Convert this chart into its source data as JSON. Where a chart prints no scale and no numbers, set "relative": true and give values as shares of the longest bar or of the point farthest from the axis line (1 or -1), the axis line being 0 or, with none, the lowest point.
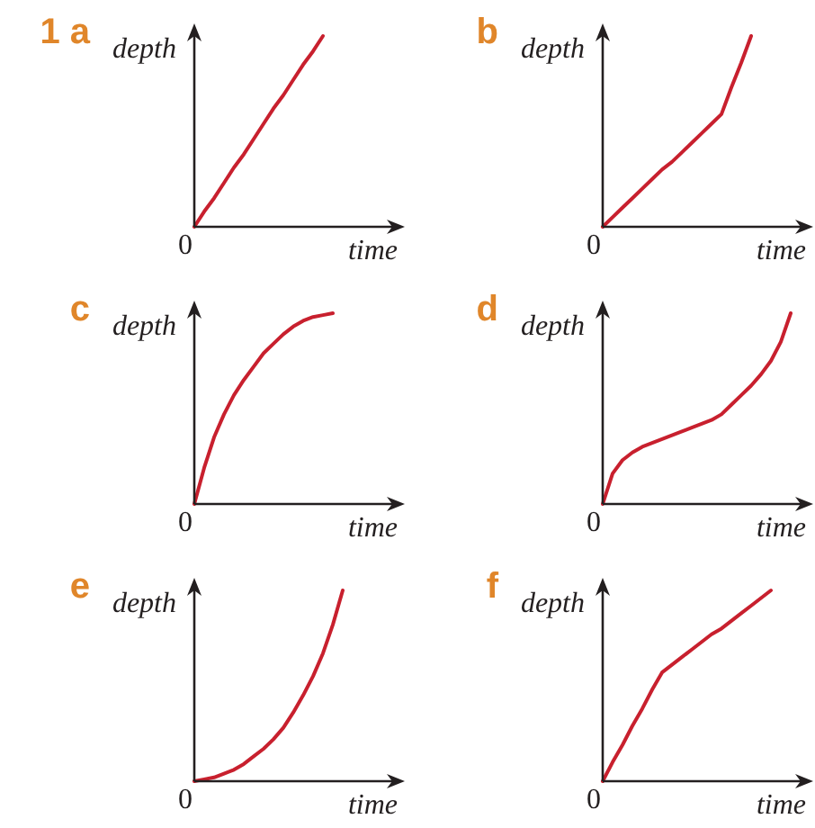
{
  "chart_data": [
    {
      "type": "line",
      "title": "1 a",
      "xlabel": "time",
      "ylabel": "depth",
      "annotations": [
        "0"
      ],
      "relative": true,
      "categories": [
        null,
        null,
        null,
        null,
        null,
        null,
        null,
        null,
        null,
        null,
        null,
        null,
        null,
        null,
        null,
        null,
        null,
        null,
        null,
        null,
        null
      ],
      "color": "#c8202e",
      "values": [
        0,
        0.08,
        0.15,
        0.23,
        0.31,
        0.38,
        0.46,
        0.54,
        0.62,
        0.69,
        0.77,
        0.85,
        0.92,
        1,
        null,
        null,
        null,
        null,
        null,
        null,
        null
      ]
    },
    {
      "type": "line",
      "title": "b",
      "xlabel": "time",
      "ylabel": "depth",
      "annotations": [
        "0"
      ],
      "relative": true,
      "categories": [
        null,
        null,
        null,
        null,
        null,
        null,
        null,
        null,
        null,
        null,
        null,
        null,
        null,
        null,
        null,
        null,
        null,
        null,
        null,
        null,
        null
      ],
      "color": "#c8202e",
      "values": [
        0,
        0.05,
        0.1,
        0.15,
        0.2,
        0.25,
        0.3,
        0.34,
        0.39,
        0.44,
        0.49,
        0.54,
        0.59,
        0.73,
        0.86,
        1,
        null,
        null,
        null,
        null,
        null
      ]
    },
    {
      "type": "line",
      "title": "c",
      "xlabel": "time",
      "ylabel": "depth",
      "annotations": [
        "0"
      ],
      "relative": true,
      "categories": [
        null,
        null,
        null,
        null,
        null,
        null,
        null,
        null,
        null,
        null,
        null,
        null,
        null,
        null,
        null,
        null,
        null,
        null,
        null,
        null,
        null
      ],
      "color": "#c8202e",
      "values": [
        0,
        0.19,
        0.35,
        0.47,
        0.57,
        0.65,
        0.72,
        0.79,
        0.84,
        0.89,
        0.93,
        0.96,
        0.98,
        0.99,
        1,
        null,
        null,
        null,
        null,
        null,
        null
      ]
    },
    {
      "type": "line",
      "title": "d",
      "xlabel": "time",
      "ylabel": "depth",
      "annotations": [
        "0"
      ],
      "relative": true,
      "categories": [
        null,
        null,
        null,
        null,
        null,
        null,
        null,
        null,
        null,
        null,
        null,
        null,
        null,
        null,
        null,
        null,
        null,
        null,
        null,
        null,
        null
      ],
      "color": "#c8202e",
      "values": [
        0,
        0.16,
        0.23,
        0.27,
        0.3,
        0.32,
        0.34,
        0.36,
        0.38,
        0.4,
        0.42,
        0.44,
        0.47,
        0.52,
        0.57,
        0.62,
        0.68,
        0.75,
        0.85,
        1,
        null
      ]
    },
    {
      "type": "line",
      "title": "e",
      "xlabel": "time",
      "ylabel": "depth",
      "annotations": [
        "0"
      ],
      "relative": true,
      "categories": [
        null,
        null,
        null,
        null,
        null,
        null,
        null,
        null,
        null,
        null,
        null,
        null,
        null,
        null,
        null,
        null,
        null,
        null,
        null,
        null,
        null
      ],
      "color": "#c8202e",
      "values": [
        0,
        0.01,
        0.02,
        0.04,
        0.06,
        0.09,
        0.13,
        0.17,
        0.22,
        0.28,
        0.36,
        0.45,
        0.55,
        0.67,
        0.82,
        1,
        null,
        null,
        null,
        null,
        null
      ]
    },
    {
      "type": "line",
      "title": "f",
      "xlabel": "time",
      "ylabel": "depth",
      "annotations": [
        "0"
      ],
      "relative": true,
      "categories": [
        null,
        null,
        null,
        null,
        null,
        null,
        null,
        null,
        null,
        null,
        null,
        null,
        null,
        null,
        null,
        null,
        null,
        null,
        null,
        null,
        null
      ],
      "color": "#c8202e",
      "values": [
        0,
        0.1,
        0.19,
        0.29,
        0.38,
        0.48,
        0.57,
        0.61,
        0.65,
        0.69,
        0.73,
        0.77,
        0.8,
        0.84,
        0.88,
        0.92,
        0.96,
        1,
        null,
        null,
        null
      ]
    }
  ]
}
